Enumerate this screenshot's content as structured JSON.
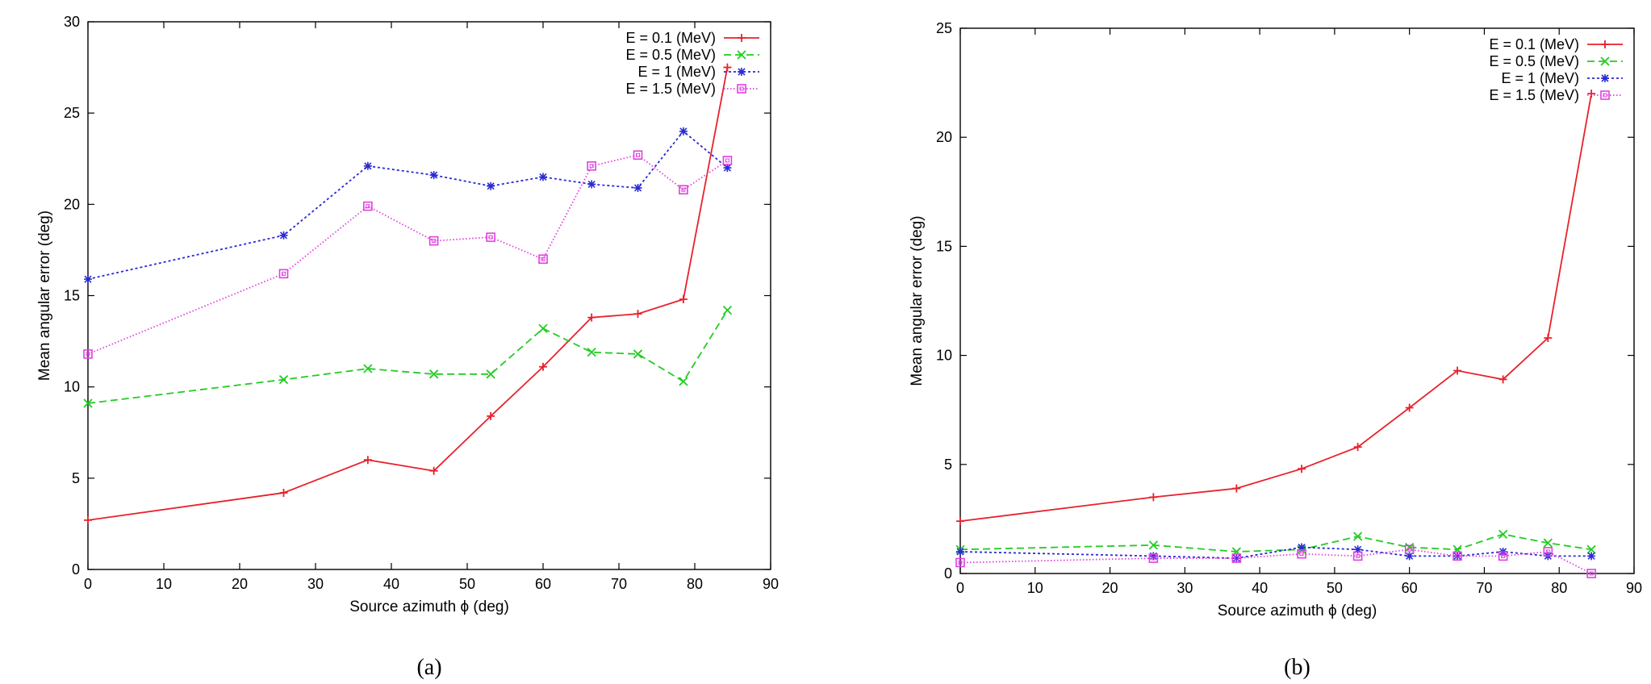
{
  "chart_data": [
    {
      "type": "line",
      "caption": "(a)",
      "xlabel": "Source azimuth ϕ (deg)",
      "ylabel": "Mean angular error (deg)",
      "xlim": [
        0,
        90
      ],
      "ylim": [
        0,
        30
      ],
      "xticks": [
        0,
        10,
        20,
        30,
        40,
        50,
        60,
        70,
        80,
        90
      ],
      "yticks": [
        0,
        5,
        10,
        15,
        20,
        25,
        30
      ],
      "grid": false,
      "legend": "top-right",
      "x": [
        0,
        25.8,
        36.9,
        45.6,
        53.1,
        60,
        66.4,
        72.5,
        78.5,
        84.3
      ],
      "series": [
        {
          "name": "E = 0.1 (MeV)",
          "color": "#e8212b",
          "marker": "plus",
          "dash": "solid",
          "values": [
            2.7,
            4.2,
            6.0,
            5.4,
            8.4,
            11.1,
            13.8,
            14.0,
            14.8,
            27.5
          ]
        },
        {
          "name": "E = 0.5 (MeV)",
          "color": "#22cc22",
          "marker": "x",
          "dash": "dashed",
          "values": [
            9.1,
            10.4,
            11.0,
            10.7,
            10.7,
            13.2,
            11.9,
            11.8,
            10.3,
            14.2
          ]
        },
        {
          "name": "E = 1 (MeV)",
          "color": "#2a2ad6",
          "marker": "star",
          "dash": "dotted",
          "values": [
            15.9,
            18.3,
            22.1,
            21.6,
            21.0,
            21.5,
            21.1,
            20.9,
            24.0,
            22.0
          ]
        },
        {
          "name": "E = 1.5 (MeV)",
          "color": "#e040e0",
          "marker": "square",
          "dash": "finedot",
          "values": [
            11.8,
            16.2,
            19.9,
            18.0,
            18.2,
            17.0,
            22.1,
            22.7,
            20.8,
            22.4
          ]
        }
      ]
    },
    {
      "type": "line",
      "caption": "(b)",
      "xlabel": "Source azimuth ϕ (deg)",
      "ylabel": "Mean angular error (deg)",
      "xlim": [
        0,
        90
      ],
      "ylim": [
        0,
        25
      ],
      "xticks": [
        0,
        10,
        20,
        30,
        40,
        50,
        60,
        70,
        80,
        90
      ],
      "yticks": [
        0,
        5,
        10,
        15,
        20,
        25
      ],
      "grid": false,
      "legend": "top-right",
      "x": [
        0,
        25.8,
        36.9,
        45.6,
        53.1,
        60,
        66.4,
        72.5,
        78.5,
        84.3
      ],
      "series": [
        {
          "name": "E = 0.1 (MeV)",
          "color": "#e8212b",
          "marker": "plus",
          "dash": "solid",
          "values": [
            2.4,
            3.5,
            3.9,
            4.8,
            5.8,
            7.6,
            9.3,
            8.9,
            10.8,
            22.0
          ]
        },
        {
          "name": "E = 0.5 (MeV)",
          "color": "#22cc22",
          "marker": "x",
          "dash": "dashed",
          "values": [
            1.1,
            1.3,
            1.0,
            1.1,
            1.7,
            1.2,
            1.1,
            1.8,
            1.4,
            1.1
          ]
        },
        {
          "name": "E = 1 (MeV)",
          "color": "#2a2ad6",
          "marker": "star",
          "dash": "dotted",
          "values": [
            1.0,
            0.8,
            0.7,
            1.2,
            1.1,
            0.8,
            0.8,
            1.0,
            0.8,
            0.8
          ]
        },
        {
          "name": "E = 1.5 (MeV)",
          "color": "#e040e0",
          "marker": "square",
          "dash": "finedot",
          "values": [
            0.5,
            0.7,
            0.7,
            0.9,
            0.8,
            1.1,
            0.8,
            0.8,
            1.0,
            0.0
          ]
        }
      ]
    }
  ]
}
